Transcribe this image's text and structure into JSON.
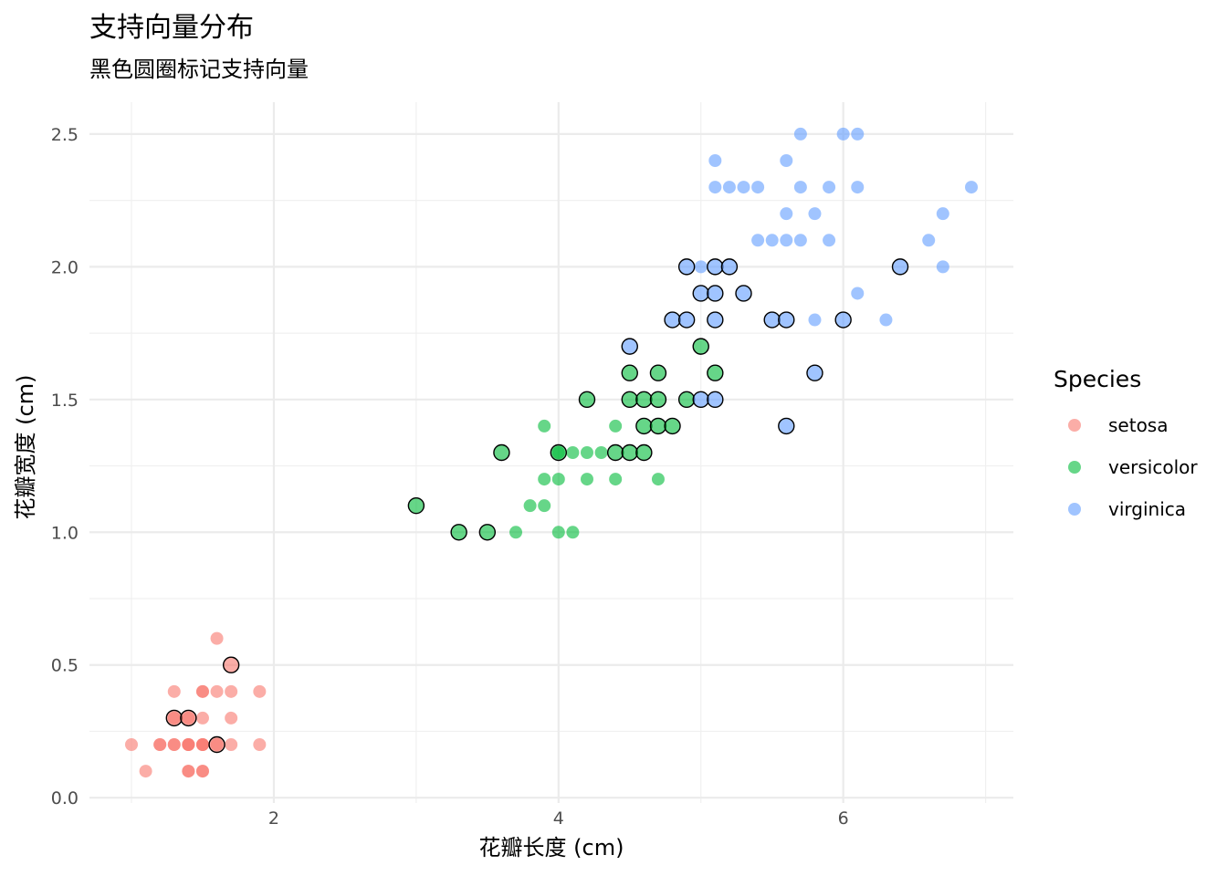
{
  "chart_data": {
    "type": "scatter",
    "title": "支持向量分布",
    "subtitle": "黑色圆圈标记支持向量",
    "xlabel": "花瓣长度 (cm)",
    "ylabel": "花瓣宽度 (cm)",
    "xlim": [
      0.705,
      7.195
    ],
    "ylim": [
      -0.02,
      2.62
    ],
    "x_ticks": [
      2,
      4,
      6
    ],
    "x_tick_labels": [
      "2",
      "4",
      "6"
    ],
    "y_ticks": [
      0.0,
      0.5,
      1.0,
      1.5,
      2.0,
      2.5
    ],
    "y_tick_labels": [
      "0.0",
      "0.5",
      "1.0",
      "1.5",
      "2.0",
      "2.5"
    ],
    "grid": true,
    "legend": {
      "title": "Species",
      "placement": "right",
      "entries": [
        "setosa",
        "versicolor",
        "virginica"
      ]
    },
    "colors": {
      "setosa": "#F8766D",
      "versicolor": "#00BA38",
      "virginica": "#619CFF",
      "support_vector_outline": "#000000"
    },
    "series": [
      {
        "name": "setosa",
        "points": [
          [
            1.0,
            0.2
          ],
          [
            1.1,
            0.1
          ],
          [
            1.2,
            0.2
          ],
          [
            1.2,
            0.2
          ],
          [
            1.3,
            0.2
          ],
          [
            1.3,
            0.2
          ],
          [
            1.3,
            0.4
          ],
          [
            1.3,
            0.3
          ],
          [
            1.4,
            0.2
          ],
          [
            1.4,
            0.2
          ],
          [
            1.4,
            0.1
          ],
          [
            1.4,
            0.2
          ],
          [
            1.4,
            0.3
          ],
          [
            1.5,
            0.2
          ],
          [
            1.5,
            0.2
          ],
          [
            1.5,
            0.1
          ],
          [
            1.5,
            0.4
          ],
          [
            1.5,
            0.4
          ],
          [
            1.5,
            0.3
          ],
          [
            1.5,
            0.2
          ],
          [
            1.6,
            0.2
          ],
          [
            1.6,
            0.4
          ],
          [
            1.6,
            0.6
          ],
          [
            1.7,
            0.4
          ],
          [
            1.7,
            0.3
          ],
          [
            1.7,
            0.2
          ],
          [
            1.9,
            0.2
          ],
          [
            1.9,
            0.4
          ],
          [
            1.5,
            0.1
          ],
          [
            1.4,
            0.1
          ]
        ],
        "support_vectors": [
          [
            1.3,
            0.3
          ],
          [
            1.4,
            0.3
          ],
          [
            1.6,
            0.2
          ],
          [
            1.7,
            0.5
          ]
        ]
      },
      {
        "name": "versicolor",
        "points": [
          [
            3.7,
            1.0
          ],
          [
            3.8,
            1.1
          ],
          [
            3.9,
            1.1
          ],
          [
            3.9,
            1.2
          ],
          [
            3.9,
            1.4
          ],
          [
            4.0,
            1.0
          ],
          [
            4.0,
            1.2
          ],
          [
            4.1,
            1.0
          ],
          [
            4.1,
            1.3
          ],
          [
            4.2,
            1.2
          ],
          [
            4.2,
            1.3
          ],
          [
            4.3,
            1.3
          ],
          [
            4.4,
            1.2
          ],
          [
            4.4,
            1.4
          ],
          [
            4.0,
            1.3
          ],
          [
            4.7,
            1.2
          ]
        ],
        "support_vectors": [
          [
            3.0,
            1.1
          ],
          [
            3.3,
            1.0
          ],
          [
            3.5,
            1.0
          ],
          [
            3.6,
            1.3
          ],
          [
            4.0,
            1.3
          ],
          [
            4.2,
            1.5
          ],
          [
            4.4,
            1.3
          ],
          [
            4.5,
            1.3
          ],
          [
            4.5,
            1.5
          ],
          [
            4.5,
            1.6
          ],
          [
            4.6,
            1.3
          ],
          [
            4.6,
            1.4
          ],
          [
            4.6,
            1.5
          ],
          [
            4.7,
            1.4
          ],
          [
            4.7,
            1.5
          ],
          [
            4.7,
            1.6
          ],
          [
            4.8,
            1.4
          ],
          [
            4.9,
            1.5
          ],
          [
            5.0,
            1.7
          ],
          [
            5.1,
            1.6
          ]
        ]
      },
      {
        "name": "virginica",
        "points": [
          [
            5.1,
            2.4
          ],
          [
            5.6,
            2.4
          ],
          [
            5.7,
            2.5
          ],
          [
            6.0,
            2.5
          ],
          [
            6.1,
            2.5
          ],
          [
            5.1,
            2.3
          ],
          [
            5.2,
            2.3
          ],
          [
            5.3,
            2.3
          ],
          [
            5.4,
            2.3
          ],
          [
            5.7,
            2.3
          ],
          [
            5.9,
            2.3
          ],
          [
            6.1,
            2.3
          ],
          [
            6.9,
            2.3
          ],
          [
            5.6,
            2.2
          ],
          [
            5.8,
            2.2
          ],
          [
            6.7,
            2.2
          ],
          [
            5.4,
            2.1
          ],
          [
            5.5,
            2.1
          ],
          [
            5.6,
            2.1
          ],
          [
            5.7,
            2.1
          ],
          [
            5.9,
            2.1
          ],
          [
            6.6,
            2.1
          ],
          [
            5.0,
            2.0
          ],
          [
            6.7,
            2.0
          ],
          [
            6.1,
            1.9
          ],
          [
            5.8,
            1.8
          ],
          [
            6.3,
            1.8
          ]
        ],
        "support_vectors": [
          [
            4.5,
            1.7
          ],
          [
            4.8,
            1.8
          ],
          [
            4.9,
            1.8
          ],
          [
            4.9,
            2.0
          ],
          [
            5.0,
            1.9
          ],
          [
            5.0,
            1.5
          ],
          [
            5.1,
            2.0
          ],
          [
            5.1,
            1.9
          ],
          [
            5.1,
            1.8
          ],
          [
            5.1,
            1.5
          ],
          [
            5.2,
            2.0
          ],
          [
            5.3,
            1.9
          ],
          [
            5.5,
            1.8
          ],
          [
            5.6,
            1.8
          ],
          [
            5.6,
            1.4
          ],
          [
            5.8,
            1.6
          ],
          [
            6.0,
            1.8
          ],
          [
            6.4,
            2.0
          ]
        ]
      }
    ]
  }
}
